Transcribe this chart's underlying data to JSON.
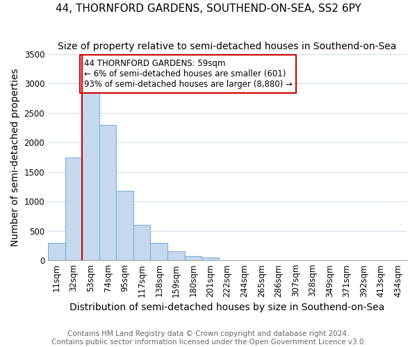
{
  "title": "44, THORNFORD GARDENS, SOUTHEND-ON-SEA, SS2 6PY",
  "subtitle": "Size of property relative to semi-detached houses in Southend-on-Sea",
  "xlabel": "Distribution of semi-detached houses by size in Southend-on-Sea",
  "ylabel": "Number of semi-detached properties",
  "footer1": "Contains HM Land Registry data © Crown copyright and database right 2024.",
  "footer2": "Contains public sector information licensed under the Open Government Licence v3.0.",
  "bin_labels": [
    "11sqm",
    "32sqm",
    "53sqm",
    "74sqm",
    "95sqm",
    "117sqm",
    "138sqm",
    "159sqm",
    "180sqm",
    "201sqm",
    "222sqm",
    "244sqm",
    "265sqm",
    "286sqm",
    "307sqm",
    "328sqm",
    "349sqm",
    "371sqm",
    "392sqm",
    "413sqm",
    "434sqm"
  ],
  "bar_heights": [
    300,
    1750,
    2920,
    2300,
    1175,
    600,
    300,
    150,
    75,
    50,
    0,
    0,
    0,
    0,
    0,
    0,
    0,
    0,
    0,
    0,
    0
  ],
  "bar_color": "#c5d8ed",
  "bar_edge_color": "#7fb0d8",
  "property_bin_index": 2,
  "red_line_color": "#cc0000",
  "annotation_text": "44 THORNFORD GARDENS: 59sqm\n← 6% of semi-detached houses are smaller (601)\n93% of semi-detached houses are larger (8,880) →",
  "annotation_box_color": "#ffffff",
  "annotation_box_edge": "#cc0000",
  "ylim": [
    0,
    3500
  ],
  "yticks": [
    0,
    500,
    1000,
    1500,
    2000,
    2500,
    3000,
    3500
  ],
  "bg_color": "#ffffff",
  "axes_bg_color": "#ffffff",
  "grid_color": "#d0dce8",
  "title_fontsize": 11,
  "subtitle_fontsize": 10,
  "axis_label_fontsize": 10,
  "tick_fontsize": 8.5,
  "footer_fontsize": 7.5
}
